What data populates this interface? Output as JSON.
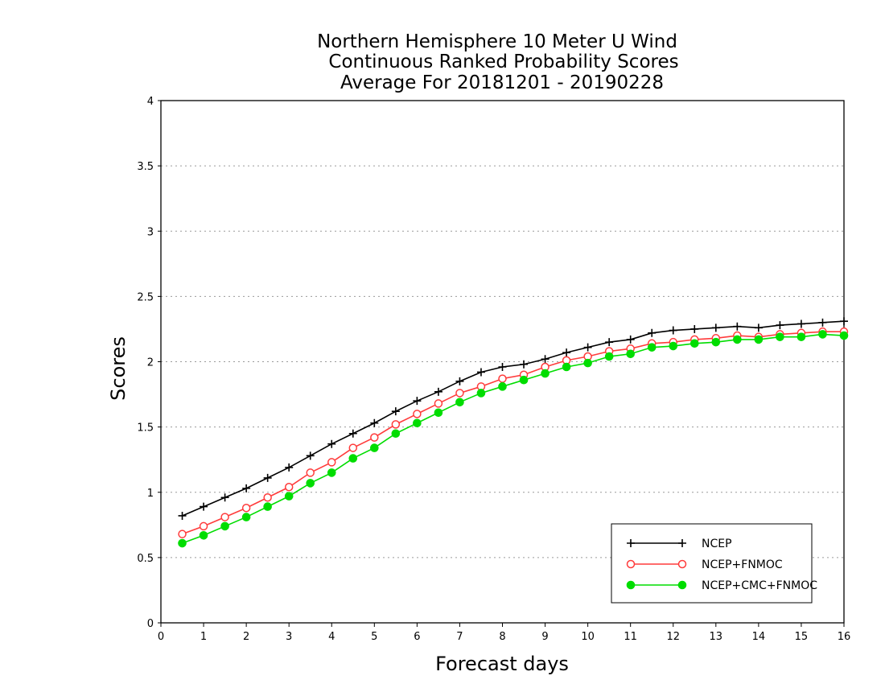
{
  "chart_data": {
    "type": "line",
    "title": [
      "Northern Hemisphere 10 Meter U Wind",
      "Continuous Ranked Probability Scores",
      "Average For 20181201 - 20190228"
    ],
    "xlabel": "Forecast days",
    "ylabel": "Scores",
    "xlim": [
      0,
      16
    ],
    "ylim": [
      0,
      4
    ],
    "xticks": [
      "0",
      "1",
      "2",
      "3",
      "4",
      "5",
      "6",
      "7",
      "8",
      "9",
      "10",
      "11",
      "12",
      "13",
      "14",
      "15",
      "16"
    ],
    "yticks": [
      "0",
      "0.5",
      "1",
      "1.5",
      "2",
      "2.5",
      "3",
      "3.5",
      "4"
    ],
    "grid": "horizontal dotted",
    "legend_position": "bottom-right",
    "x": [
      0.5,
      1,
      1.5,
      2,
      2.5,
      3,
      3.5,
      4,
      4.5,
      5,
      5.5,
      6,
      6.5,
      7,
      7.5,
      8,
      8.5,
      9,
      9.5,
      10,
      10.5,
      11,
      11.5,
      12,
      12.5,
      13,
      13.5,
      14,
      14.5,
      15,
      15.5,
      16
    ],
    "series": [
      {
        "name": "NCEP",
        "color": "#000000",
        "marker": "plus",
        "values": [
          0.82,
          0.89,
          0.96,
          1.03,
          1.11,
          1.19,
          1.28,
          1.37,
          1.45,
          1.53,
          1.62,
          1.7,
          1.77,
          1.85,
          1.92,
          1.96,
          1.98,
          2.02,
          2.07,
          2.11,
          2.15,
          2.17,
          2.22,
          2.24,
          2.25,
          2.26,
          2.27,
          2.26,
          2.28,
          2.29,
          2.3,
          2.31
        ]
      },
      {
        "name": "NCEP+FNMOC",
        "color": "#ff3b3b",
        "marker": "open-circle",
        "values": [
          0.68,
          0.74,
          0.81,
          0.88,
          0.96,
          1.04,
          1.15,
          1.23,
          1.34,
          1.42,
          1.52,
          1.6,
          1.68,
          1.76,
          1.81,
          1.87,
          1.9,
          1.96,
          2.01,
          2.04,
          2.08,
          2.1,
          2.14,
          2.15,
          2.17,
          2.18,
          2.2,
          2.19,
          2.21,
          2.22,
          2.23,
          2.23
        ]
      },
      {
        "name": "NCEP+CMC+FNMOC",
        "color": "#00dd00",
        "marker": "filled-circle",
        "values": [
          0.61,
          0.67,
          0.74,
          0.81,
          0.89,
          0.97,
          1.07,
          1.15,
          1.26,
          1.34,
          1.45,
          1.53,
          1.61,
          1.69,
          1.76,
          1.81,
          1.86,
          1.91,
          1.96,
          1.99,
          2.04,
          2.06,
          2.11,
          2.12,
          2.14,
          2.15,
          2.17,
          2.17,
          2.19,
          2.19,
          2.21,
          2.2
        ]
      }
    ]
  }
}
